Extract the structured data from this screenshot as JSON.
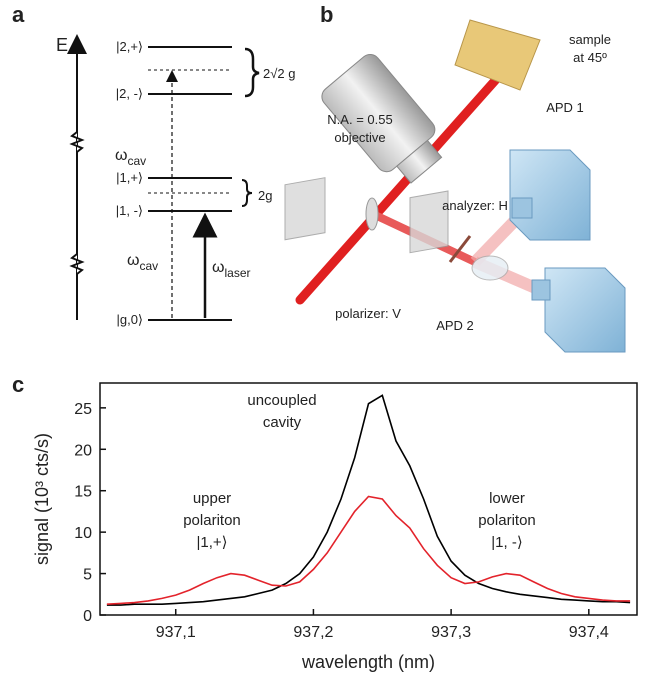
{
  "panel_labels": [
    "a",
    "b",
    "c"
  ],
  "energy_diagram": {
    "axis_label": "E",
    "levels": [
      "|2,+⟩",
      "|2, -⟩",
      "|1,+⟩",
      "|1, -⟩",
      "|g,0⟩"
    ],
    "splitting_large": "2√2 g",
    "splitting_small": "2g",
    "cavity": {
      "symbol": "ω",
      "sub": "cav"
    },
    "laser": {
      "symbol": "ω",
      "sub": "laser"
    }
  },
  "setup": {
    "labels": [
      {
        "lines": [
          "sample",
          "at 45º"
        ]
      },
      {
        "lines": [
          "N.A. = 0.55",
          "objective"
        ]
      },
      {
        "lines": [
          "APD 1"
        ]
      },
      {
        "lines": [
          "analyzer: H"
        ]
      },
      {
        "lines": [
          "polarizer: V"
        ]
      },
      {
        "lines": [
          "APD 2"
        ]
      }
    ]
  },
  "chart_data": {
    "type": "line",
    "xlabel": "wavelength (nm)",
    "ylabel": "signal (10³ cts/s)",
    "x": [
      937.05,
      937.06,
      937.07,
      937.08,
      937.09,
      937.1,
      937.11,
      937.12,
      937.13,
      937.14,
      937.15,
      937.16,
      937.17,
      937.18,
      937.19,
      937.2,
      937.21,
      937.22,
      937.23,
      937.24,
      937.25,
      937.26,
      937.27,
      937.28,
      937.29,
      937.3,
      937.31,
      937.32,
      937.33,
      937.34,
      937.35,
      937.36,
      937.37,
      937.38,
      937.39,
      937.4,
      937.41,
      937.42,
      937.43
    ],
    "series": [
      {
        "color": "#000000",
        "values": [
          1.2,
          1.2,
          1.3,
          1.3,
          1.3,
          1.4,
          1.5,
          1.6,
          1.8,
          2.0,
          2.2,
          2.6,
          3.0,
          3.8,
          5.0,
          7.0,
          10.0,
          14.0,
          19.0,
          25.5,
          26.5,
          21.0,
          18.0,
          14.0,
          9.5,
          6.5,
          4.8,
          3.8,
          3.2,
          2.8,
          2.5,
          2.3,
          2.1,
          1.9,
          1.8,
          1.7,
          1.6,
          1.6,
          1.5
        ]
      },
      {
        "color": "#e3232b",
        "values": [
          1.3,
          1.4,
          1.5,
          1.7,
          2.0,
          2.4,
          3.0,
          3.8,
          4.5,
          5.0,
          4.8,
          4.2,
          3.6,
          3.5,
          4.0,
          5.5,
          7.5,
          10.0,
          12.5,
          14.3,
          14.0,
          12.0,
          10.5,
          8.0,
          6.0,
          4.5,
          3.8,
          4.0,
          4.6,
          5.0,
          4.8,
          4.0,
          3.2,
          2.6,
          2.2,
          2.0,
          1.8,
          1.7,
          1.7
        ]
      }
    ],
    "xlim": [
      937.045,
      937.435
    ],
    "xticks": [
      {
        "value": 937.1,
        "label": "937,1"
      },
      {
        "value": 937.2,
        "label": "937,2"
      },
      {
        "value": 937.3,
        "label": "937,3"
      },
      {
        "value": 937.4,
        "label": "937,4"
      }
    ],
    "ylim": [
      0,
      28
    ],
    "yticks": [
      0,
      5,
      10,
      15,
      20,
      25
    ],
    "annotations": [
      {
        "lines": [
          "uncoupled",
          "cavity"
        ]
      },
      {
        "lines": [
          "upper",
          "polariton",
          "|1,+⟩"
        ]
      },
      {
        "lines": [
          "lower",
          "polariton",
          "|1, -⟩"
        ]
      }
    ]
  }
}
